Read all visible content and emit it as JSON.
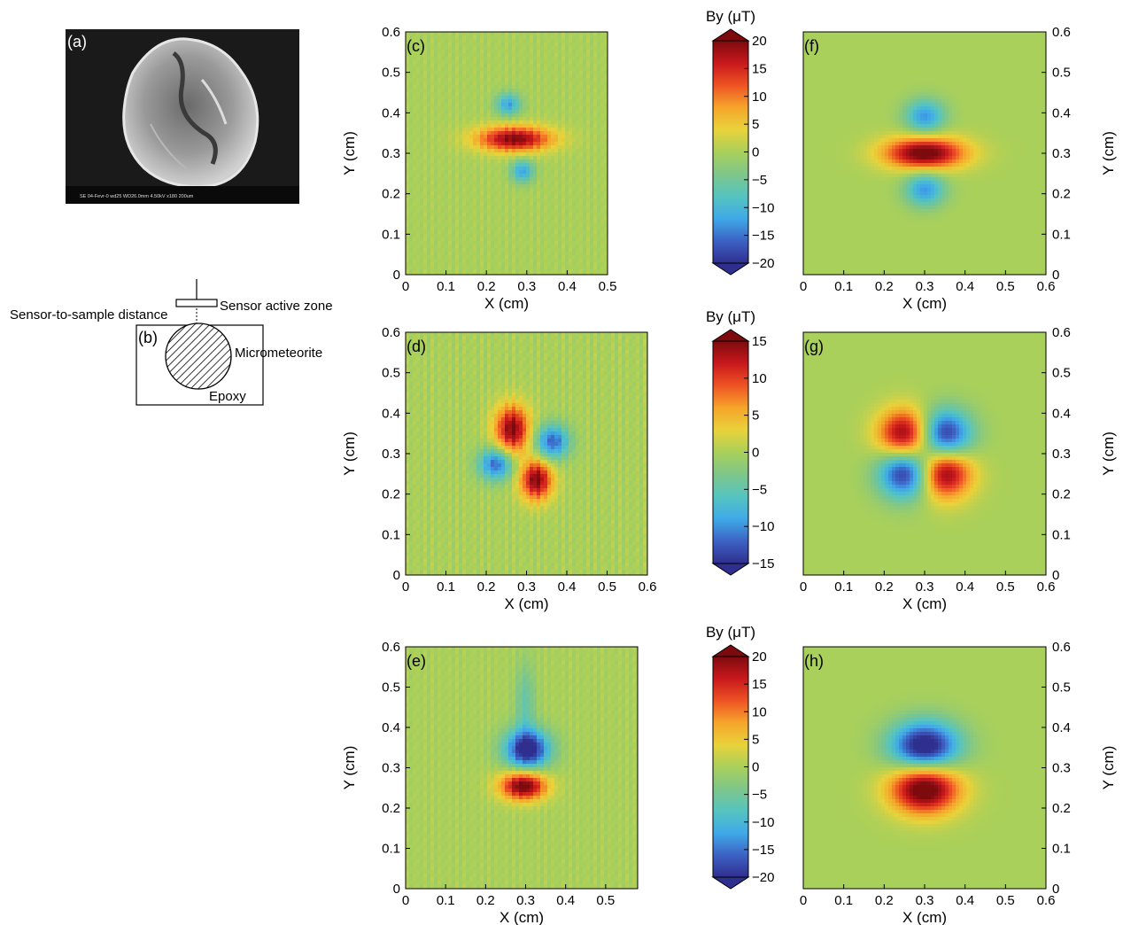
{
  "panel_a": {
    "label": "(a)",
    "sem_caption": "SE   04-Fevr-0      wd25   WD26.0mm 4.50kV x180   200um"
  },
  "panel_b": {
    "label": "(b)",
    "sensor_label": "Sensor active zone",
    "distance_label": "Sensor-to-sample distance",
    "sample_label": "Micrometeorite",
    "medium_label": "Epoxy"
  },
  "colormap": [
    "#2f2f8f",
    "#3c62c4",
    "#3fa9e8",
    "#55c4c0",
    "#7ec68a",
    "#a9d05a",
    "#e9d23a",
    "#f6a52b",
    "#ee5323",
    "#c8181c",
    "#7d0b0e"
  ],
  "colorbars": [
    {
      "title": "By (μT)",
      "ticks": [
        "20",
        "15",
        "10",
        "5",
        "0",
        "−5",
        "−10",
        "−15",
        "−20"
      ]
    },
    {
      "title": "By (μT)",
      "ticks": [
        "15",
        "10",
        "5",
        "0",
        "−5",
        "−10",
        "−15"
      ]
    },
    {
      "title": "By (μT)",
      "ticks": [
        "20",
        "15",
        "10",
        "5",
        "0",
        "−5",
        "−10",
        "−15",
        "−20"
      ]
    }
  ],
  "chart_data": [
    {
      "type": "heatmap",
      "panel": "(c)",
      "xlabel": "X (cm)",
      "ylabel": "Y (cm)",
      "xticks": [
        "0",
        "0.1",
        "0.2",
        "0.3",
        "0.4",
        "0.5"
      ],
      "yticks": [
        "0",
        "0.1",
        "0.2",
        "0.3",
        "0.4",
        "0.5",
        "0.6"
      ],
      "xlim": [
        0,
        0.5
      ],
      "ylim": [
        0,
        0.6
      ],
      "clim": [
        -20,
        20
      ],
      "unit": "μT",
      "kind": "measured",
      "features": [
        {
          "x": 0.27,
          "y": 0.335,
          "value": 20,
          "sx": 0.065,
          "sy": 0.022
        },
        {
          "x": 0.255,
          "y": 0.42,
          "value": -12,
          "sx": 0.022,
          "sy": 0.02
        },
        {
          "x": 0.29,
          "y": 0.255,
          "value": -12,
          "sx": 0.02,
          "sy": 0.02
        }
      ]
    },
    {
      "type": "heatmap",
      "panel": "(d)",
      "xlabel": "X (cm)",
      "ylabel": "Y (cm)",
      "xticks": [
        "0",
        "0.1",
        "0.2",
        "0.3",
        "0.4",
        "0.5",
        "0.6"
      ],
      "yticks": [
        "0",
        "0.1",
        "0.2",
        "0.3",
        "0.4",
        "0.5",
        "0.6"
      ],
      "xlim": [
        0,
        0.6
      ],
      "ylim": [
        0,
        0.6
      ],
      "clim": [
        -15,
        15
      ],
      "unit": "μT",
      "kind": "measured",
      "features": [
        {
          "x": 0.265,
          "y": 0.36,
          "value": 15,
          "sx": 0.03,
          "sy": 0.042
        },
        {
          "x": 0.325,
          "y": 0.235,
          "value": 15,
          "sx": 0.028,
          "sy": 0.035
        },
        {
          "x": 0.365,
          "y": 0.33,
          "value": -12,
          "sx": 0.03,
          "sy": 0.03
        },
        {
          "x": 0.225,
          "y": 0.275,
          "value": -12,
          "sx": 0.03,
          "sy": 0.028
        }
      ]
    },
    {
      "type": "heatmap",
      "panel": "(e)",
      "xlabel": "X (cm)",
      "ylabel": "Y (cm)",
      "xticks": [
        "0",
        "0.1",
        "0.2",
        "0.3",
        "0.4",
        "0.5"
      ],
      "yticks": [
        "0",
        "0.1",
        "0.2",
        "0.3",
        "0.4",
        "0.5",
        "0.6"
      ],
      "xlim": [
        0,
        0.58
      ],
      "ylim": [
        0,
        0.6
      ],
      "clim": [
        -20,
        20
      ],
      "unit": "μT",
      "kind": "measured",
      "features": [
        {
          "x": 0.305,
          "y": 0.345,
          "value": -22,
          "sx": 0.04,
          "sy": 0.035
        },
        {
          "x": 0.3,
          "y": 0.46,
          "value": -6,
          "sx": 0.018,
          "sy": 0.07
        },
        {
          "x": 0.295,
          "y": 0.255,
          "value": 22,
          "sx": 0.04,
          "sy": 0.025
        }
      ]
    },
    {
      "type": "heatmap",
      "panel": "(f)",
      "xlabel": "X (cm)",
      "ylabel": "Y (cm)",
      "xticks": [
        "0",
        "0.1",
        "0.2",
        "0.3",
        "0.4",
        "0.5",
        "0.6"
      ],
      "yticks": [
        "0",
        "0.1",
        "0.2",
        "0.3",
        "0.4",
        "0.5",
        "0.6"
      ],
      "xlim": [
        0,
        0.6
      ],
      "ylim": [
        0,
        0.6
      ],
      "clim": [
        -20,
        20
      ],
      "unit": "μT",
      "kind": "modeled",
      "features": [
        {
          "x": 0.3,
          "y": 0.3,
          "value": 22,
          "sx": 0.07,
          "sy": 0.028
        },
        {
          "x": 0.3,
          "y": 0.39,
          "value": -13,
          "sx": 0.035,
          "sy": 0.03
        },
        {
          "x": 0.3,
          "y": 0.21,
          "value": -13,
          "sx": 0.035,
          "sy": 0.03
        }
      ]
    },
    {
      "type": "heatmap",
      "panel": "(g)",
      "xlabel": "X (cm)",
      "ylabel": "Y (cm)",
      "xticks": [
        "0",
        "0.1",
        "0.2",
        "0.3",
        "0.4",
        "0.5",
        "0.6"
      ],
      "yticks": [
        "0",
        "0.1",
        "0.2",
        "0.3",
        "0.4",
        "0.5",
        "0.6"
      ],
      "xlim": [
        0,
        0.6
      ],
      "ylim": [
        0,
        0.6
      ],
      "clim": [
        -15,
        15
      ],
      "unit": "μT",
      "kind": "modeled",
      "features": [
        {
          "x": 0.255,
          "y": 0.345,
          "value": 17,
          "sx": 0.048,
          "sy": 0.045
        },
        {
          "x": 0.345,
          "y": 0.255,
          "value": 17,
          "sx": 0.048,
          "sy": 0.045
        },
        {
          "x": 0.345,
          "y": 0.345,
          "value": -17,
          "sx": 0.048,
          "sy": 0.045
        },
        {
          "x": 0.255,
          "y": 0.255,
          "value": -17,
          "sx": 0.048,
          "sy": 0.045
        }
      ]
    },
    {
      "type": "heatmap",
      "panel": "(h)",
      "xlabel": "X (cm)",
      "ylabel": "Y (cm)",
      "xticks": [
        "0",
        "0.1",
        "0.2",
        "0.3",
        "0.4",
        "0.5",
        "0.6"
      ],
      "yticks": [
        "0",
        "0.1",
        "0.2",
        "0.3",
        "0.4",
        "0.5",
        "0.6"
      ],
      "xlim": [
        0,
        0.6
      ],
      "ylim": [
        0,
        0.6
      ],
      "clim": [
        -20,
        20
      ],
      "unit": "μT",
      "kind": "modeled",
      "features": [
        {
          "x": 0.3,
          "y": 0.35,
          "value": -24,
          "sx": 0.06,
          "sy": 0.045
        },
        {
          "x": 0.3,
          "y": 0.25,
          "value": 24,
          "sx": 0.06,
          "sy": 0.045
        }
      ]
    }
  ]
}
